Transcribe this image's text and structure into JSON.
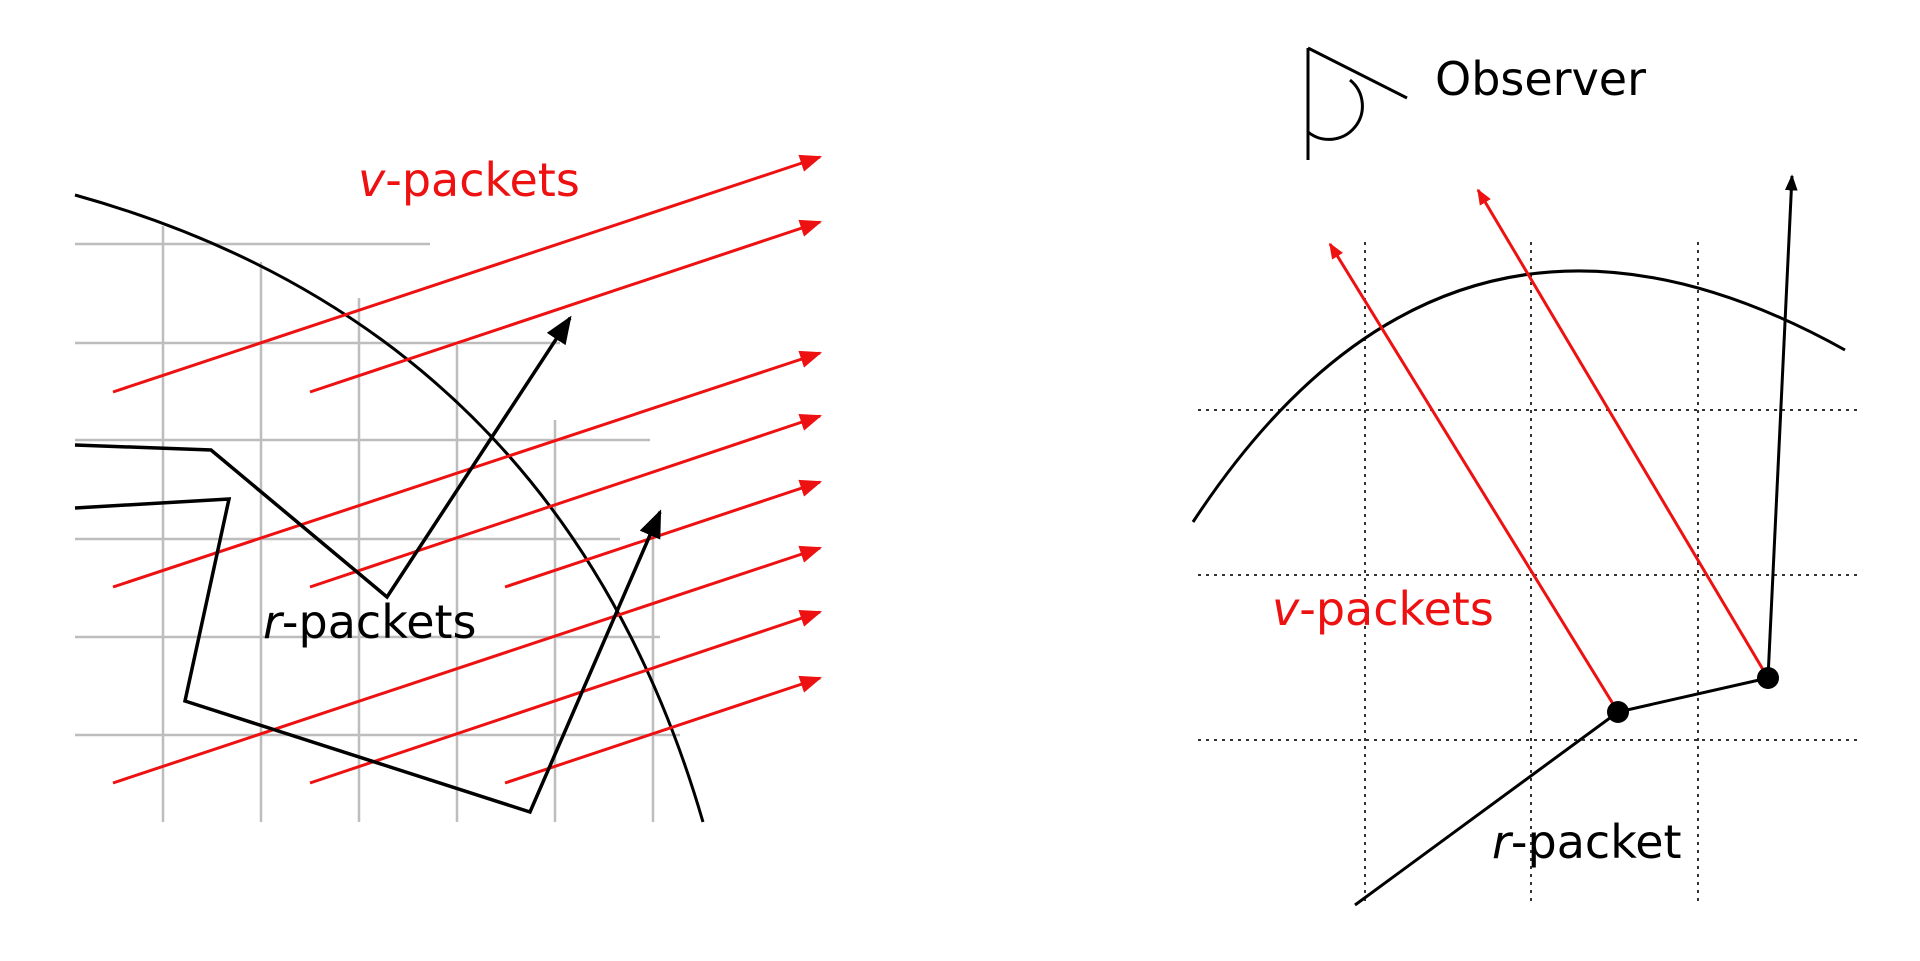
{
  "colors": {
    "v_packet": "#ee1111",
    "r_packet": "#000000",
    "left_grid": "#bdbdbd",
    "right_grid": "#333333",
    "background": "#ffffff"
  },
  "left_panel": {
    "v_label_prefix": "v",
    "v_label_suffix": "-packets",
    "r_label_prefix": "r",
    "r_label_suffix": "-packets"
  },
  "right_panel": {
    "observer_label": "Observer",
    "observer_icon": "eye-icon",
    "v_label_prefix": "v",
    "v_label_suffix": "-packets",
    "r_label_prefix": "r",
    "r_label_suffix": "-packet"
  }
}
